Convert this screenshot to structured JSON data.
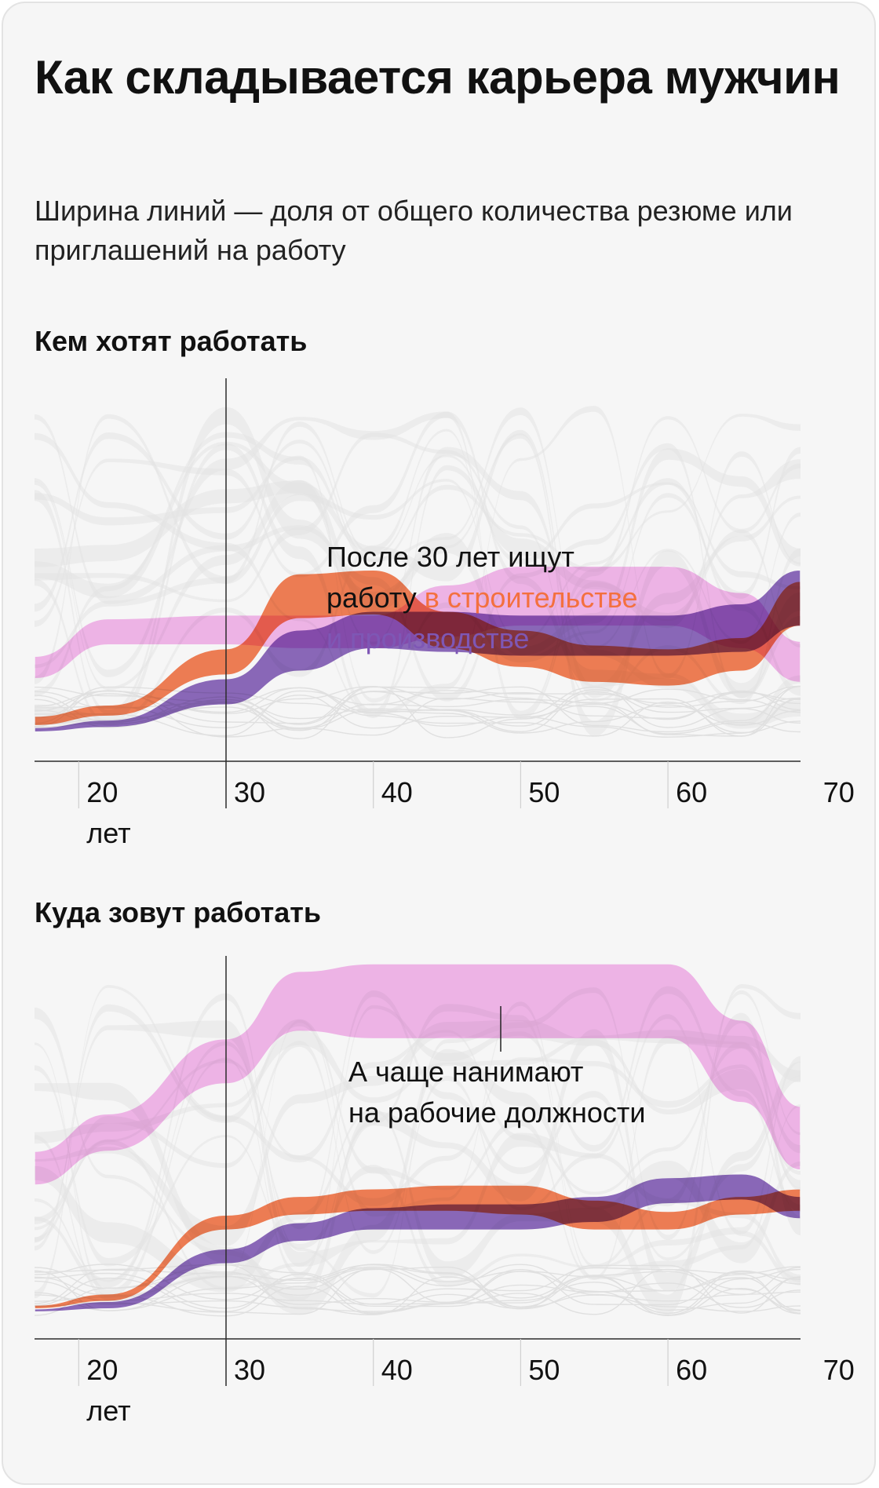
{
  "title": "Как складывается карьера мужчин",
  "subtitle": "Ширина линий — доля от общего количества резюме или приглашений на работу",
  "colors": {
    "construction": "#f4703f",
    "production": "#7e57b5",
    "workers": "#f5b3ec",
    "other": "#e3e3e3",
    "axis": "#2b2b2b"
  },
  "chart_data": [
    {
      "type": "area",
      "title": "Кем хотят работать",
      "x": [
        17,
        22,
        30,
        35,
        40,
        45,
        50,
        55,
        60,
        65,
        69
      ],
      "xticks": [
        "20\nлет",
        "30",
        "40",
        "50",
        "60",
        "70"
      ],
      "xtick_values": [
        20,
        30,
        40,
        50,
        60,
        70
      ],
      "annotation": {
        "line1": "После 30 лет ищут",
        "line2_prefix": "работу ",
        "line2_highlight": "в строительстве",
        "line3": "и производстве"
      },
      "series": [
        {
          "name": "в строительстве",
          "color_key": "construction",
          "top": [
            88,
            85,
            70,
            50,
            49,
            60,
            65,
            69,
            70,
            67,
            52
          ],
          "width": [
            2.5,
            3,
            7,
            12,
            12,
            10,
            10,
            10,
            10,
            9,
            12
          ]
        },
        {
          "name": "и производстве",
          "color_key": "production",
          "top": [
            91,
            89,
            78,
            65,
            60,
            60,
            61,
            61,
            61,
            58,
            49
          ],
          "width": [
            1.2,
            2,
            7,
            11,
            10,
            11,
            11,
            11,
            11,
            13,
            15
          ]
        },
        {
          "name": "рабочие должности",
          "color_key": "workers",
          "top": [
            72,
            62,
            61,
            61,
            61,
            53,
            48,
            48,
            48,
            55,
            68
          ],
          "width": [
            6,
            7,
            8,
            9,
            9,
            14,
            16,
            16,
            16,
            15,
            11
          ]
        }
      ]
    },
    {
      "type": "area",
      "title": "Куда зовут работать",
      "x": [
        17,
        22,
        30,
        35,
        40,
        45,
        50,
        55,
        60,
        65,
        69
      ],
      "xticks": [
        "20\nлет",
        "30",
        "40",
        "50",
        "60",
        "70"
      ],
      "xtick_values": [
        20,
        30,
        40,
        50,
        60,
        70
      ],
      "annotation": {
        "line1": "А чаще нанимают",
        "line2": "на рабочие должности"
      },
      "series": [
        {
          "name": "в строительстве",
          "color_key": "construction",
          "top": [
            91,
            88,
            67,
            62,
            60,
            59,
            59,
            63,
            66,
            62,
            60
          ],
          "width": [
            1,
            2,
            4,
            5,
            6,
            7,
            8,
            8,
            5,
            5,
            6
          ]
        },
        {
          "name": "и производстве",
          "color_key": "production",
          "top": [
            92,
            90,
            76,
            69,
            65,
            64,
            64,
            62,
            57,
            56,
            62
          ],
          "width": [
            0.8,
            2,
            4,
            5,
            6,
            7,
            7,
            7,
            7,
            7,
            6
          ]
        },
        {
          "name": "рабочие должности",
          "color_key": "workers",
          "top": [
            50,
            40,
            20,
            2,
            0,
            0,
            0,
            0,
            0,
            15,
            38
          ],
          "width": [
            9,
            10,
            12,
            16,
            20,
            20,
            20,
            20,
            20,
            22,
            17
          ]
        }
      ]
    }
  ]
}
